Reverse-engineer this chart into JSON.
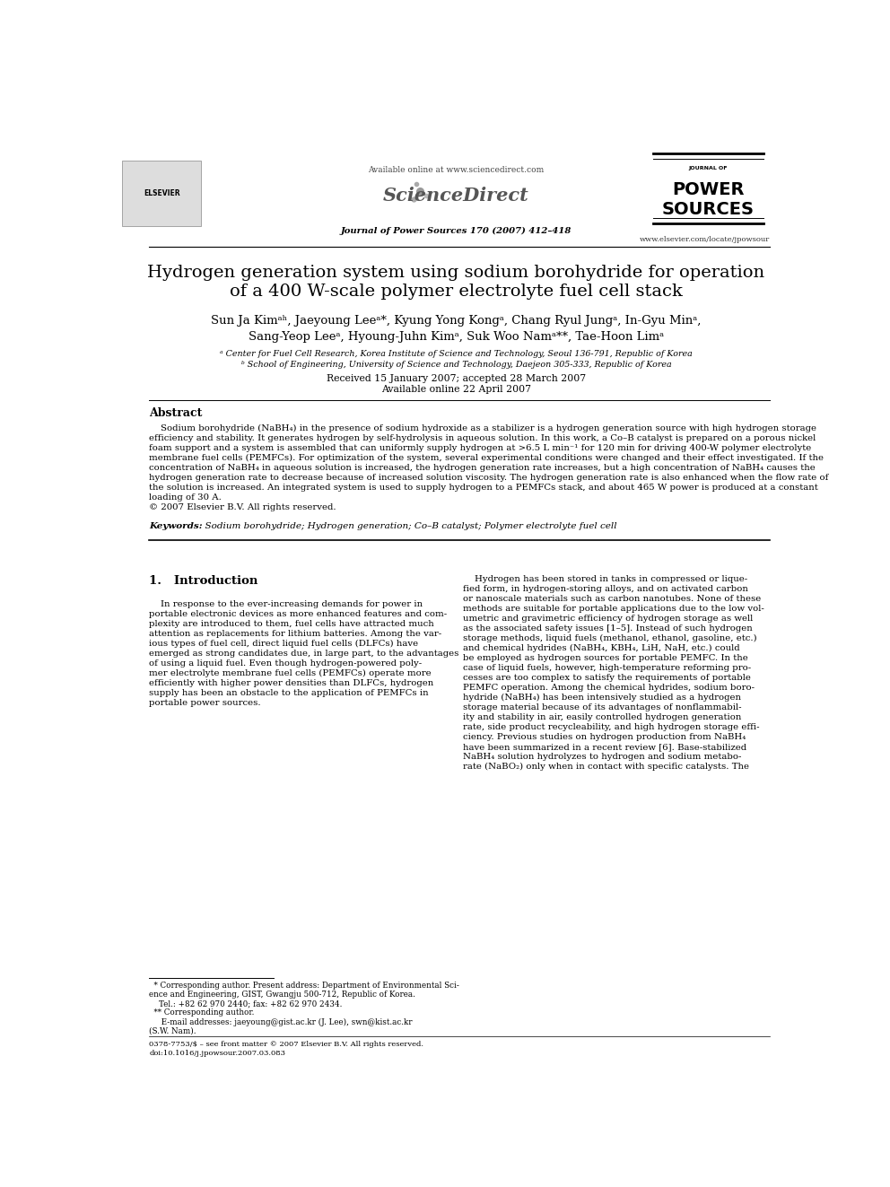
{
  "bg_color": "#ffffff",
  "text_color": "#000000",
  "page_width": 9.92,
  "page_height": 13.23,
  "header_available": "Available online at www.sciencedirect.com",
  "header_journal_line": "Journal of Power Sources 170 (2007) 412–418",
  "header_website": "www.elsevier.com/locate/jpowsour",
  "title_line1": "Hydrogen generation system using sodium borohydride for operation",
  "title_line2": "of a 400 W-scale polymer electrolyte fuel cell stack",
  "author_line1": "Sun Ja Kimᵃʰ, Jaeyoung Leeᵃ*, Kyung Yong Kongᵃ, Chang Ryul Jungᵃ, In-Gyu Minᵃ,",
  "author_line2": "Sang-Yeop Leeᵃ, Hyoung-Juhn Kimᵃ, Suk Woo Namᵃ**, Tae-Hoon Limᵃ",
  "affil_a": "ᵃ Center for Fuel Cell Research, Korea Institute of Science and Technology, Seoul 136-791, Republic of Korea",
  "affil_b": "ᵇ School of Engineering, University of Science and Technology, Daejeon 305-333, Republic of Korea",
  "received": "Received 15 January 2007; accepted 28 March 2007",
  "available_online": "Available online 22 April 2007",
  "abstract_title": "Abstract",
  "abstract_text": "    Sodium borohydride (NaBH₄) in the presence of sodium hydroxide as a stabilizer is a hydrogen generation source with high hydrogen storage efficiency and stability. It generates hydrogen by self-hydrolysis in aqueous solution. In this work, a Co–B catalyst is prepared on a porous nickel foam support and a system is assembled that can uniformly supply hydrogen at >6.5 L min⁻¹ for 120 min for driving 400-W polymer electrolyte membrane fuel cells (PEMFCs). For optimization of the system, several experimental conditions were changed and their effect investigated. If the concentration of NaBH₄ in aqueous solution is increased, the hydrogen generation rate increases, but a high concentration of NaBH₄ causes the hydrogen generation rate to decrease because of increased solution viscosity. The hydrogen generation rate is also enhanced when the flow rate of the solution is increased. An integrated system is used to supply hydrogen to a PEMFCs stack, and about 465 W power is produced at a constant loading of 30 A.\n© 2007 Elsevier B.V. All rights reserved.",
  "keywords_label": "Keywords:",
  "keywords_text": "  Sodium borohydride; Hydrogen generation; Co–B catalyst; Polymer electrolyte fuel cell",
  "section1_title": "1.   Introduction",
  "intro_left_lines": [
    "    In response to the ever-increasing demands for power in",
    "portable electronic devices as more enhanced features and com-",
    "plexity are introduced to them, fuel cells have attracted much",
    "attention as replacements for lithium batteries. Among the var-",
    "ious types of fuel cell, direct liquid fuel cells (DLFCs) have",
    "emerged as strong candidates due, in large part, to the advantages",
    "of using a liquid fuel. Even though hydrogen-powered poly-",
    "mer electrolyte membrane fuel cells (PEMFCs) operate more",
    "efficiently with higher power densities than DLFCs, hydrogen",
    "supply has been an obstacle to the application of PEMFCs in",
    "portable power sources."
  ],
  "intro_right_lines": [
    "    Hydrogen has been stored in tanks in compressed or lique-",
    "fied form, in hydrogen-storing alloys, and on activated carbon",
    "or nanoscale materials such as carbon nanotubes. None of these",
    "methods are suitable for portable applications due to the low vol-",
    "umetric and gravimetric efficiency of hydrogen storage as well",
    "as the associated safety issues [1–5]. Instead of such hydrogen",
    "storage methods, liquid fuels (methanol, ethanol, gasoline, etc.)",
    "and chemical hydrides (NaBH₄, KBH₄, LiH, NaH, etc.) could",
    "be employed as hydrogen sources for portable PEMFC. In the",
    "case of liquid fuels, however, high-temperature reforming pro-",
    "cesses are too complex to satisfy the requirements of portable",
    "PEMFC operation. Among the chemical hydrides, sodium boro-",
    "hydride (NaBH₄) has been intensively studied as a hydrogen",
    "storage material because of its advantages of nonflammabil-",
    "ity and stability in air, easily controlled hydrogen generation",
    "rate, side product recycleability, and high hydrogen storage effi-",
    "ciency. Previous studies on hydrogen production from NaBH₄",
    "have been summarized in a recent review [6]. Base-stabilized",
    "NaBH₄ solution hydrolyzes to hydrogen and sodium metabo-",
    "rate (NaBO₂) only when in contact with specific catalysts. The"
  ],
  "footnote1_lines": [
    "  * Corresponding author. Present address: Department of Environmental Sci-",
    "ence and Engineering, GIST, Gwangju 500-712, Republic of Korea.",
    "    Tel.: +82 62 970 2440; fax: +82 62 970 2434.",
    "  ** Corresponding author.",
    "     E-mail addresses: jaeyoung@gist.ac.kr (J. Lee), swn@kist.ac.kr",
    "(S.W. Nam)."
  ],
  "footer_line1": "0378-7753/$ – see front matter © 2007 Elsevier B.V. All rights reserved.",
  "footer_line2": "doi:10.1016/j.jpowsour.2007.03.083"
}
